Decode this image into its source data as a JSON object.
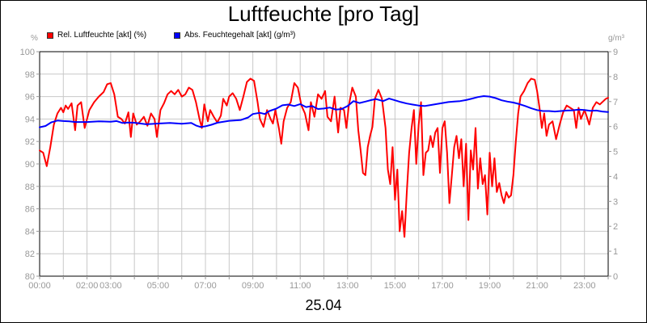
{
  "chart_data": {
    "type": "line",
    "title": "Luftfeuchte [pro Tag]",
    "date": "25.04",
    "y_left_unit": "%",
    "y_right_unit": "g/m³",
    "ylim_left": [
      80,
      100
    ],
    "ylim_right": [
      0,
      9
    ],
    "yticks_left": [
      "80",
      "82",
      "84",
      "86",
      "88",
      "90",
      "92",
      "94",
      "96",
      "98",
      "100"
    ],
    "yticks_right": [
      "0",
      "1",
      "2",
      "3",
      "4",
      "5",
      "6",
      "7",
      "8",
      "9"
    ],
    "x_range_hours": [
      0,
      24
    ],
    "x_ticks": [
      {
        "h": 0,
        "label": "00:00"
      },
      {
        "h": 2,
        "label": "02:00"
      },
      {
        "h": 3,
        "label": "03:00"
      },
      {
        "h": 5,
        "label": "05:00"
      },
      {
        "h": 7,
        "label": "07:00"
      },
      {
        "h": 9,
        "label": "09:00"
      },
      {
        "h": 11,
        "label": "11:00"
      },
      {
        "h": 13,
        "label": "13:00"
      },
      {
        "h": 15,
        "label": "15:00"
      },
      {
        "h": 17,
        "label": "17:00"
      },
      {
        "h": 19,
        "label": "19:00"
      },
      {
        "h": 21,
        "label": "21:00"
      },
      {
        "h": 23,
        "label": "23:00"
      }
    ],
    "grid": true,
    "legend_position": "top-left",
    "series": [
      {
        "name": "Rel. Luftfeuchte [akt] (%)",
        "color": "#ff0000",
        "axis": "left",
        "points": [
          [
            0.0,
            91.2
          ],
          [
            0.15,
            91.0
          ],
          [
            0.3,
            89.8
          ],
          [
            0.45,
            91.5
          ],
          [
            0.6,
            93.5
          ],
          [
            0.75,
            94.5
          ],
          [
            0.9,
            95.0
          ],
          [
            1.0,
            94.6
          ],
          [
            1.1,
            95.2
          ],
          [
            1.2,
            94.9
          ],
          [
            1.35,
            95.4
          ],
          [
            1.5,
            93.0
          ],
          [
            1.6,
            95.2
          ],
          [
            1.75,
            95.5
          ],
          [
            1.9,
            93.2
          ],
          [
            2.1,
            94.8
          ],
          [
            2.3,
            95.5
          ],
          [
            2.5,
            96.0
          ],
          [
            2.7,
            96.4
          ],
          [
            2.85,
            97.1
          ],
          [
            3.0,
            97.2
          ],
          [
            3.15,
            96.2
          ],
          [
            3.3,
            94.2
          ],
          [
            3.45,
            94.0
          ],
          [
            3.6,
            93.6
          ],
          [
            3.75,
            94.6
          ],
          [
            3.85,
            92.4
          ],
          [
            3.95,
            94.5
          ],
          [
            4.1,
            93.5
          ],
          [
            4.25,
            93.8
          ],
          [
            4.4,
            94.2
          ],
          [
            4.55,
            93.4
          ],
          [
            4.7,
            94.5
          ],
          [
            4.85,
            94.0
          ],
          [
            4.95,
            92.4
          ],
          [
            5.1,
            94.8
          ],
          [
            5.25,
            95.4
          ],
          [
            5.4,
            96.2
          ],
          [
            5.55,
            96.5
          ],
          [
            5.7,
            96.2
          ],
          [
            5.85,
            96.6
          ],
          [
            6.0,
            96.0
          ],
          [
            6.15,
            96.2
          ],
          [
            6.3,
            96.8
          ],
          [
            6.45,
            96.6
          ],
          [
            6.6,
            95.5
          ],
          [
            6.75,
            94.0
          ],
          [
            6.85,
            93.2
          ],
          [
            6.95,
            95.3
          ],
          [
            7.1,
            93.8
          ],
          [
            7.2,
            94.8
          ],
          [
            7.35,
            94.2
          ],
          [
            7.5,
            93.7
          ],
          [
            7.65,
            94.3
          ],
          [
            7.75,
            95.8
          ],
          [
            7.9,
            95.2
          ],
          [
            8.0,
            96.0
          ],
          [
            8.15,
            96.3
          ],
          [
            8.3,
            95.8
          ],
          [
            8.45,
            94.8
          ],
          [
            8.6,
            96.0
          ],
          [
            8.75,
            97.3
          ],
          [
            8.9,
            97.6
          ],
          [
            9.05,
            97.4
          ],
          [
            9.2,
            95.5
          ],
          [
            9.3,
            94.0
          ],
          [
            9.45,
            93.3
          ],
          [
            9.6,
            94.8
          ],
          [
            9.75,
            94.0
          ],
          [
            9.85,
            93.6
          ],
          [
            9.95,
            94.8
          ],
          [
            10.1,
            93.2
          ],
          [
            10.2,
            91.8
          ],
          [
            10.3,
            93.8
          ],
          [
            10.45,
            95.0
          ],
          [
            10.6,
            95.5
          ],
          [
            10.75,
            97.2
          ],
          [
            10.9,
            96.8
          ],
          [
            11.05,
            95.2
          ],
          [
            11.2,
            94.5
          ],
          [
            11.35,
            93.0
          ],
          [
            11.45,
            95.5
          ],
          [
            11.6,
            94.2
          ],
          [
            11.75,
            96.2
          ],
          [
            11.9,
            95.8
          ],
          [
            12.05,
            96.5
          ],
          [
            12.15,
            94.2
          ],
          [
            12.3,
            93.8
          ],
          [
            12.45,
            96.0
          ],
          [
            12.6,
            92.8
          ],
          [
            12.7,
            95.0
          ],
          [
            12.85,
            94.8
          ],
          [
            12.95,
            93.2
          ],
          [
            13.05,
            95.2
          ],
          [
            13.2,
            96.8
          ],
          [
            13.35,
            96.0
          ],
          [
            13.45,
            93.0
          ],
          [
            13.55,
            91.2
          ],
          [
            13.65,
            89.2
          ],
          [
            13.75,
            89.0
          ],
          [
            13.85,
            91.5
          ],
          [
            13.95,
            92.5
          ],
          [
            14.05,
            93.3
          ],
          [
            14.15,
            95.8
          ],
          [
            14.3,
            96.6
          ],
          [
            14.45,
            95.8
          ],
          [
            14.6,
            93.2
          ],
          [
            14.7,
            89.5
          ],
          [
            14.8,
            88.2
          ],
          [
            14.9,
            91.5
          ],
          [
            15.0,
            86.8
          ],
          [
            15.1,
            89.5
          ],
          [
            15.2,
            84.0
          ],
          [
            15.3,
            85.8
          ],
          [
            15.4,
            83.5
          ],
          [
            15.5,
            87.5
          ],
          [
            15.6,
            91.0
          ],
          [
            15.7,
            93.2
          ],
          [
            15.8,
            94.8
          ],
          [
            15.9,
            90.0
          ],
          [
            16.0,
            93.5
          ],
          [
            16.1,
            95.5
          ],
          [
            16.2,
            89.0
          ],
          [
            16.3,
            91.0
          ],
          [
            16.4,
            91.2
          ],
          [
            16.5,
            92.5
          ],
          [
            16.6,
            91.5
          ],
          [
            16.7,
            92.8
          ],
          [
            16.8,
            93.2
          ],
          [
            16.9,
            89.2
          ],
          [
            17.0,
            93.2
          ],
          [
            17.1,
            93.8
          ],
          [
            17.2,
            91.0
          ],
          [
            17.3,
            86.5
          ],
          [
            17.4,
            89.0
          ],
          [
            17.5,
            91.5
          ],
          [
            17.6,
            92.5
          ],
          [
            17.7,
            90.5
          ],
          [
            17.8,
            92.2
          ],
          [
            17.9,
            88.0
          ],
          [
            18.0,
            91.8
          ],
          [
            18.1,
            85.0
          ],
          [
            18.2,
            91.2
          ],
          [
            18.3,
            89.5
          ],
          [
            18.4,
            93.2
          ],
          [
            18.5,
            87.8
          ],
          [
            18.6,
            90.5
          ],
          [
            18.7,
            88.2
          ],
          [
            18.8,
            89.0
          ],
          [
            18.9,
            85.5
          ],
          [
            19.0,
            91.0
          ],
          [
            19.1,
            88.0
          ],
          [
            19.2,
            90.5
          ],
          [
            19.3,
            87.5
          ],
          [
            19.4,
            88.3
          ],
          [
            19.5,
            87.2
          ],
          [
            19.6,
            86.5
          ],
          [
            19.7,
            87.5
          ],
          [
            19.8,
            87.0
          ],
          [
            19.9,
            87.2
          ],
          [
            20.0,
            89.0
          ],
          [
            20.1,
            92.0
          ],
          [
            20.2,
            94.5
          ],
          [
            20.3,
            96.0
          ],
          [
            20.45,
            96.5
          ],
          [
            20.6,
            97.2
          ],
          [
            20.75,
            97.6
          ],
          [
            20.9,
            97.5
          ],
          [
            21.0,
            96.5
          ],
          [
            21.1,
            95.0
          ],
          [
            21.2,
            93.2
          ],
          [
            21.3,
            94.5
          ],
          [
            21.4,
            92.5
          ],
          [
            21.5,
            93.5
          ],
          [
            21.65,
            93.8
          ],
          [
            21.8,
            92.2
          ],
          [
            21.95,
            93.5
          ],
          [
            22.1,
            94.6
          ],
          [
            22.25,
            95.2
          ],
          [
            22.4,
            95.0
          ],
          [
            22.55,
            94.8
          ],
          [
            22.65,
            93.2
          ],
          [
            22.75,
            95.0
          ],
          [
            22.85,
            94.0
          ],
          [
            23.0,
            94.8
          ],
          [
            23.1,
            94.2
          ],
          [
            23.2,
            93.5
          ],
          [
            23.35,
            95.0
          ],
          [
            23.5,
            95.5
          ],
          [
            23.65,
            95.3
          ],
          [
            23.8,
            95.6
          ],
          [
            23.9,
            95.8
          ],
          [
            24.0,
            95.9
          ]
        ]
      },
      {
        "name": "Abs. Feuchtegehalt [akt] (g/m³)",
        "color": "#0000ff",
        "axis": "right",
        "points": [
          [
            0.0,
            5.97
          ],
          [
            0.25,
            6.02
          ],
          [
            0.5,
            6.17
          ],
          [
            0.75,
            6.24
          ],
          [
            1.0,
            6.22
          ],
          [
            1.25,
            6.21
          ],
          [
            1.5,
            6.18
          ],
          [
            2.0,
            6.18
          ],
          [
            2.5,
            6.21
          ],
          [
            3.0,
            6.19
          ],
          [
            3.25,
            6.22
          ],
          [
            3.5,
            6.14
          ],
          [
            3.75,
            6.16
          ],
          [
            4.0,
            6.15
          ],
          [
            4.5,
            6.09
          ],
          [
            5.0,
            6.12
          ],
          [
            5.5,
            6.14
          ],
          [
            6.0,
            6.11
          ],
          [
            6.4,
            6.14
          ],
          [
            6.6,
            6.04
          ],
          [
            6.8,
            5.98
          ],
          [
            7.0,
            6.01
          ],
          [
            7.25,
            6.07
          ],
          [
            7.5,
            6.15
          ],
          [
            8.0,
            6.23
          ],
          [
            8.5,
            6.26
          ],
          [
            8.8,
            6.36
          ],
          [
            9.0,
            6.5
          ],
          [
            9.3,
            6.55
          ],
          [
            9.5,
            6.5
          ],
          [
            9.7,
            6.62
          ],
          [
            10.0,
            6.72
          ],
          [
            10.25,
            6.85
          ],
          [
            10.5,
            6.88
          ],
          [
            10.75,
            6.82
          ],
          [
            11.0,
            6.9
          ],
          [
            11.25,
            6.78
          ],
          [
            11.5,
            6.82
          ],
          [
            11.75,
            6.7
          ],
          [
            12.0,
            6.72
          ],
          [
            12.25,
            6.76
          ],
          [
            12.5,
            6.68
          ],
          [
            12.75,
            6.7
          ],
          [
            13.0,
            6.82
          ],
          [
            13.25,
            7.02
          ],
          [
            13.5,
            6.94
          ],
          [
            13.75,
            7.0
          ],
          [
            14.0,
            7.06
          ],
          [
            14.2,
            7.1
          ],
          [
            14.5,
            7.02
          ],
          [
            14.75,
            7.12
          ],
          [
            15.0,
            7.05
          ],
          [
            15.25,
            6.98
          ],
          [
            15.5,
            6.92
          ],
          [
            15.75,
            6.88
          ],
          [
            16.0,
            6.84
          ],
          [
            16.25,
            6.82
          ],
          [
            16.5,
            6.86
          ],
          [
            16.75,
            6.9
          ],
          [
            17.0,
            6.94
          ],
          [
            17.25,
            6.98
          ],
          [
            17.5,
            7.0
          ],
          [
            17.75,
            7.02
          ],
          [
            18.0,
            7.06
          ],
          [
            18.25,
            7.12
          ],
          [
            18.5,
            7.18
          ],
          [
            18.75,
            7.22
          ],
          [
            19.0,
            7.2
          ],
          [
            19.25,
            7.14
          ],
          [
            19.5,
            7.05
          ],
          [
            19.75,
            7.0
          ],
          [
            20.0,
            6.96
          ],
          [
            20.25,
            6.9
          ],
          [
            20.5,
            6.82
          ],
          [
            20.75,
            6.73
          ],
          [
            21.0,
            6.66
          ],
          [
            21.25,
            6.62
          ],
          [
            21.5,
            6.62
          ],
          [
            21.75,
            6.6
          ],
          [
            22.0,
            6.62
          ],
          [
            22.25,
            6.64
          ],
          [
            22.5,
            6.65
          ],
          [
            22.75,
            6.68
          ],
          [
            23.0,
            6.66
          ],
          [
            23.25,
            6.63
          ],
          [
            23.5,
            6.64
          ],
          [
            23.75,
            6.6
          ],
          [
            24.0,
            6.58
          ]
        ]
      }
    ]
  }
}
